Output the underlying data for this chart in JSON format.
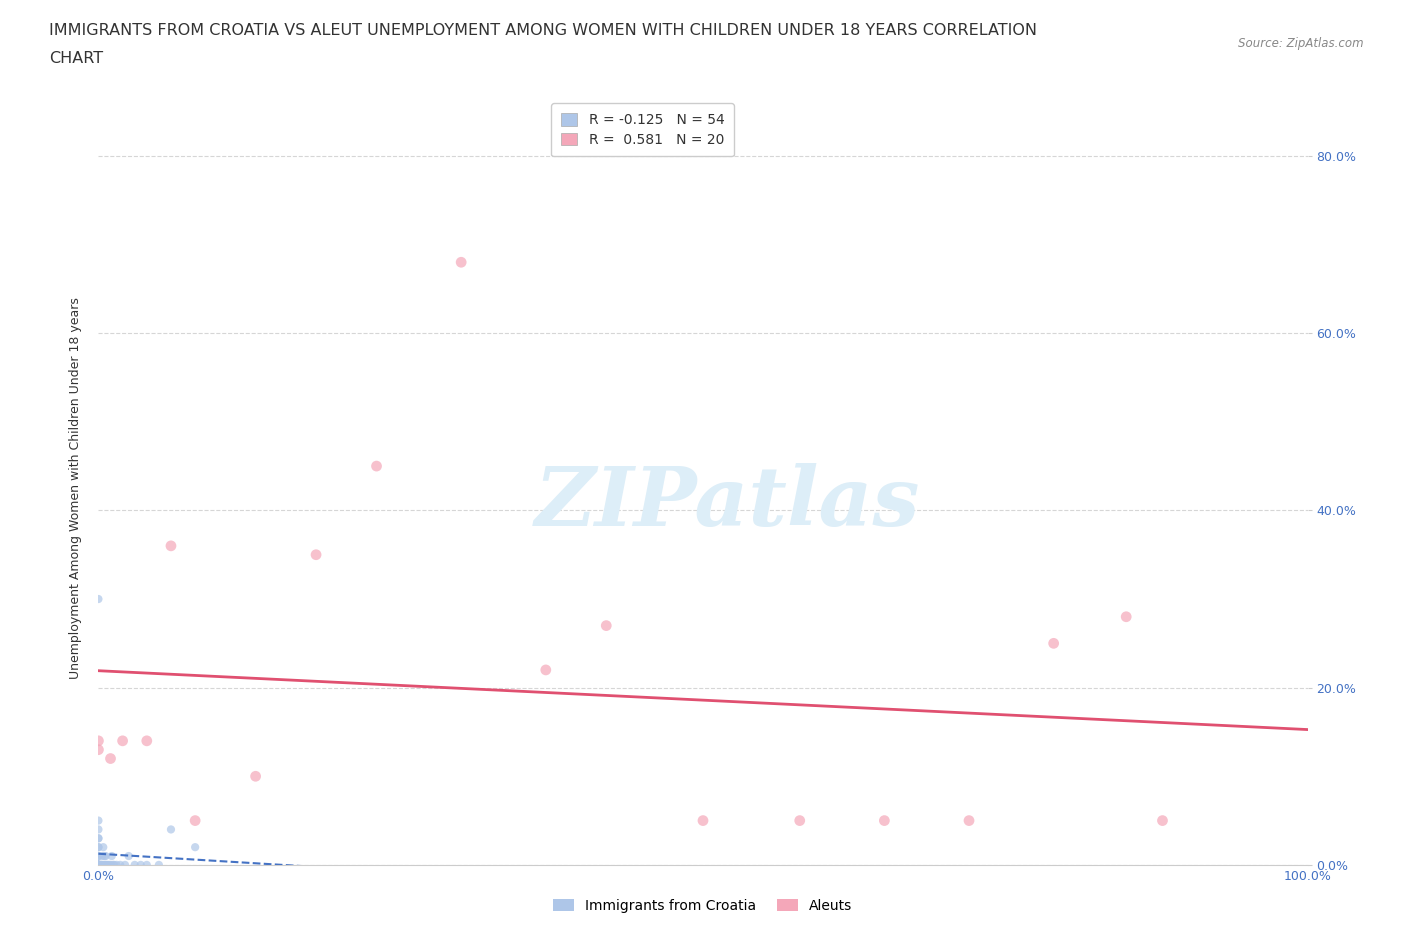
{
  "title_line1": "IMMIGRANTS FROM CROATIA VS ALEUT UNEMPLOYMENT AMONG WOMEN WITH CHILDREN UNDER 18 YEARS CORRELATION",
  "title_line2": "CHART",
  "source": "Source: ZipAtlas.com",
  "ylabel": "Unemployment Among Women with Children Under 18 years",
  "background_color": "#ffffff",
  "grid_color": "#cccccc",
  "watermark_text": "ZIPatlas",
  "watermark_color": "#ddeef8",
  "xlim": [
    0.0,
    1.0
  ],
  "ylim": [
    0.0,
    0.85
  ],
  "yticks": [
    0.0,
    0.2,
    0.4,
    0.6,
    0.8
  ],
  "ytick_labels": [
    "0.0%",
    "20.0%",
    "40.0%",
    "60.0%",
    "80.0%"
  ],
  "xtick_positions": [
    0.0,
    0.25,
    0.5,
    0.75,
    1.0
  ],
  "xtick_labels": [
    "0.0%",
    "",
    "",
    "",
    "100.0%"
  ],
  "legend_top": [
    {
      "label": "R = -0.125   N = 54",
      "color": "#aec6e8"
    },
    {
      "label": "R =  0.581   N = 20",
      "color": "#f4a7b9"
    }
  ],
  "legend_bottom": [
    {
      "label": "Immigrants from Croatia",
      "color": "#aec6e8"
    },
    {
      "label": "Aleuts",
      "color": "#f4a7b9"
    }
  ],
  "croatia_x": [
    0.0,
    0.0,
    0.0,
    0.0,
    0.0,
    0.0,
    0.0,
    0.0,
    0.0,
    0.0,
    0.0,
    0.0,
    0.0,
    0.0,
    0.0,
    0.0,
    0.0,
    0.0,
    0.0,
    0.0,
    0.0,
    0.0,
    0.0,
    0.0,
    0.0,
    0.001,
    0.001,
    0.002,
    0.002,
    0.003,
    0.003,
    0.004,
    0.004,
    0.005,
    0.005,
    0.006,
    0.006,
    0.007,
    0.008,
    0.009,
    0.01,
    0.011,
    0.012,
    0.013,
    0.015,
    0.018,
    0.022,
    0.025,
    0.03,
    0.035,
    0.04,
    0.05,
    0.06,
    0.08
  ],
  "croatia_y": [
    0.0,
    0.0,
    0.0,
    0.0,
    0.0,
    0.0,
    0.0,
    0.0,
    0.0,
    0.0,
    0.0,
    0.0,
    0.0,
    0.0,
    0.0,
    0.0,
    0.01,
    0.01,
    0.02,
    0.02,
    0.03,
    0.03,
    0.04,
    0.05,
    0.3,
    0.0,
    0.0,
    0.0,
    0.0,
    0.0,
    0.01,
    0.0,
    0.02,
    0.0,
    0.01,
    0.0,
    0.01,
    0.0,
    0.0,
    0.0,
    0.0,
    0.01,
    0.0,
    0.0,
    0.0,
    0.0,
    0.0,
    0.01,
    0.0,
    0.0,
    0.0,
    0.0,
    0.04,
    0.02
  ],
  "aleut_x": [
    0.0,
    0.0,
    0.01,
    0.02,
    0.04,
    0.06,
    0.08,
    0.13,
    0.18,
    0.23,
    0.3,
    0.37,
    0.42,
    0.5,
    0.58,
    0.65,
    0.72,
    0.79,
    0.85,
    0.88
  ],
  "aleut_y": [
    0.13,
    0.14,
    0.12,
    0.14,
    0.14,
    0.36,
    0.05,
    0.1,
    0.35,
    0.45,
    0.68,
    0.22,
    0.27,
    0.05,
    0.05,
    0.05,
    0.05,
    0.25,
    0.28,
    0.05
  ],
  "croatia_color": "#aec6e8",
  "aleut_color": "#f4a7b9",
  "croatia_trend_color": "#4472c4",
  "aleut_trend_color": "#e05070",
  "croatia_marker_size": 35,
  "aleut_marker_size": 60,
  "title_fontsize": 11.5,
  "ylabel_fontsize": 9,
  "tick_fontsize": 9,
  "legend_fontsize": 10,
  "source_fontsize": 8.5,
  "watermark_fontsize": 60
}
